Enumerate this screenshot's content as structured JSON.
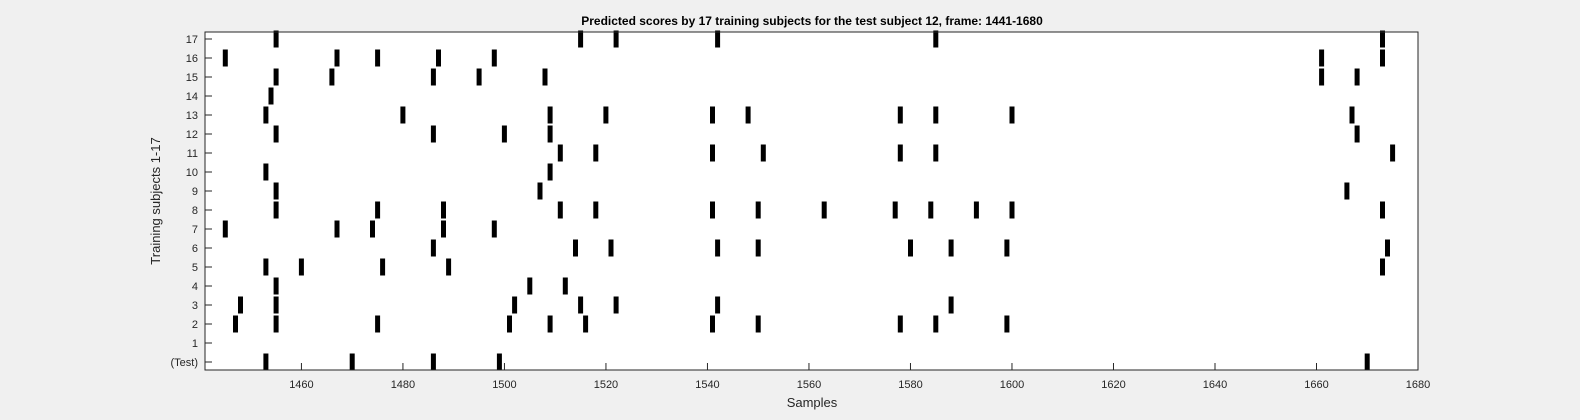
{
  "chart_data": {
    "type": "scatter",
    "title": "Predicted scores by 17 training subjects for the test subject 12, frame: 1441-1680",
    "xlabel": "Samples",
    "ylabel": "Training subjects 1-17",
    "xlim": [
      1441,
      1680
    ],
    "x_ticks": [
      1460,
      1480,
      1500,
      1520,
      1540,
      1560,
      1580,
      1600,
      1620,
      1640,
      1660,
      1680
    ],
    "y_tick_labels": [
      "(Test)",
      "1",
      "2",
      "3",
      "4",
      "5",
      "6",
      "7",
      "8",
      "9",
      "10",
      "11",
      "12",
      "13",
      "14",
      "15",
      "16",
      "17"
    ],
    "grid": false,
    "marker_color": "#000000",
    "rows": [
      {
        "label": "(Test)",
        "x": [
          1453,
          1470,
          1486,
          1499,
          1670
        ]
      },
      {
        "label": "1",
        "x": []
      },
      {
        "label": "2",
        "x": [
          1447,
          1455,
          1475,
          1501,
          1509,
          1516,
          1541,
          1550,
          1578,
          1585,
          1599
        ]
      },
      {
        "label": "3",
        "x": [
          1448,
          1455,
          1502,
          1515,
          1522,
          1542,
          1588
        ]
      },
      {
        "label": "4",
        "x": [
          1455,
          1505,
          1512
        ]
      },
      {
        "label": "5",
        "x": [
          1453,
          1460,
          1476,
          1489,
          1673
        ]
      },
      {
        "label": "6",
        "x": [
          1486,
          1514,
          1521,
          1542,
          1550,
          1580,
          1588,
          1599,
          1674
        ]
      },
      {
        "label": "7",
        "x": [
          1445,
          1467,
          1474,
          1488,
          1498
        ]
      },
      {
        "label": "8",
        "x": [
          1455,
          1475,
          1488,
          1511,
          1518,
          1541,
          1550,
          1563,
          1577,
          1584,
          1593,
          1600,
          1673
        ]
      },
      {
        "label": "9",
        "x": [
          1455,
          1507,
          1666
        ]
      },
      {
        "label": "10",
        "x": [
          1453,
          1509
        ]
      },
      {
        "label": "11",
        "x": [
          1511,
          1518,
          1541,
          1551,
          1578,
          1585,
          1675
        ]
      },
      {
        "label": "12",
        "x": [
          1455,
          1486,
          1500,
          1509,
          1668
        ]
      },
      {
        "label": "13",
        "x": [
          1453,
          1480,
          1509,
          1520,
          1541,
          1548,
          1578,
          1585,
          1600,
          1667
        ]
      },
      {
        "label": "14",
        "x": [
          1454
        ]
      },
      {
        "label": "15",
        "x": [
          1455,
          1466,
          1486,
          1495,
          1508,
          1661,
          1668
        ]
      },
      {
        "label": "16",
        "x": [
          1445,
          1467,
          1475,
          1487,
          1498,
          1661,
          1673
        ]
      },
      {
        "label": "17",
        "x": [
          1455,
          1515,
          1522,
          1542,
          1585,
          1673
        ]
      }
    ]
  }
}
